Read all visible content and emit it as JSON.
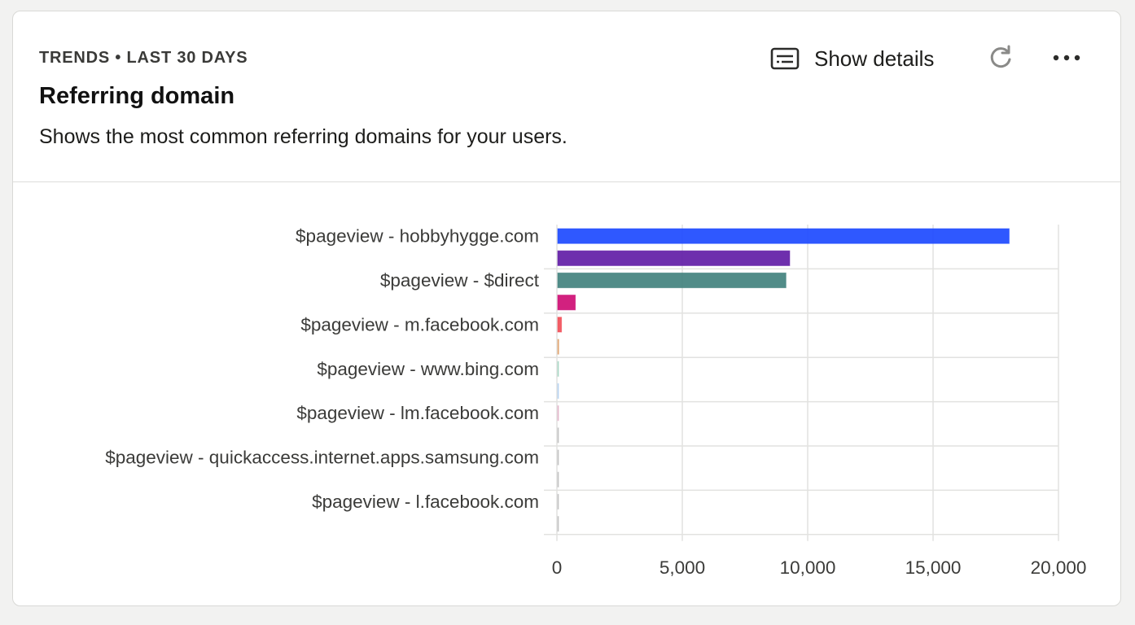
{
  "header": {
    "eyebrow": "TRENDS • LAST 30 DAYS",
    "title": "Referring domain",
    "description": "Shows the most common referring domains for your users.",
    "show_details_label": "Show details",
    "show_details_icon": "subtitles-icon",
    "refresh_icon": "refresh-icon",
    "more_icon": "more-horizontal-icon"
  },
  "chart_data": {
    "type": "bar",
    "orientation": "horizontal",
    "categories": [
      "$pageview - hobbyhygge.com",
      "",
      "$pageview - $direct",
      "",
      "$pageview - m.facebook.com",
      "",
      "$pageview - www.bing.com",
      "",
      "$pageview - lm.facebook.com",
      "",
      "$pageview - quickaccess.internet.apps.samsung.com",
      "",
      "$pageview - l.facebook.com",
      ""
    ],
    "values": [
      18000,
      9250,
      9100,
      700,
      150,
      40,
      25,
      20,
      10,
      5,
      3,
      2,
      1,
      1
    ],
    "colors": [
      "#1d4aff",
      "#621da6",
      "#42827e",
      "#ce0e74",
      "#f14f58",
      "#e1a36d",
      "#a3d6c2",
      "#b3d1f2",
      "#e2b1c8",
      "#c0c0c0",
      "#c0c0c0",
      "#c0c0c0",
      "#c0c0c0",
      "#c0c0c0"
    ],
    "x_ticks": [
      0,
      5000,
      10000,
      15000,
      20000
    ],
    "x_tick_labels": [
      "0",
      "5,000",
      "10,000",
      "15,000",
      "20,000"
    ],
    "xlim": [
      0,
      20000
    ],
    "grid": true,
    "title": "",
    "xlabel": "",
    "ylabel": ""
  }
}
